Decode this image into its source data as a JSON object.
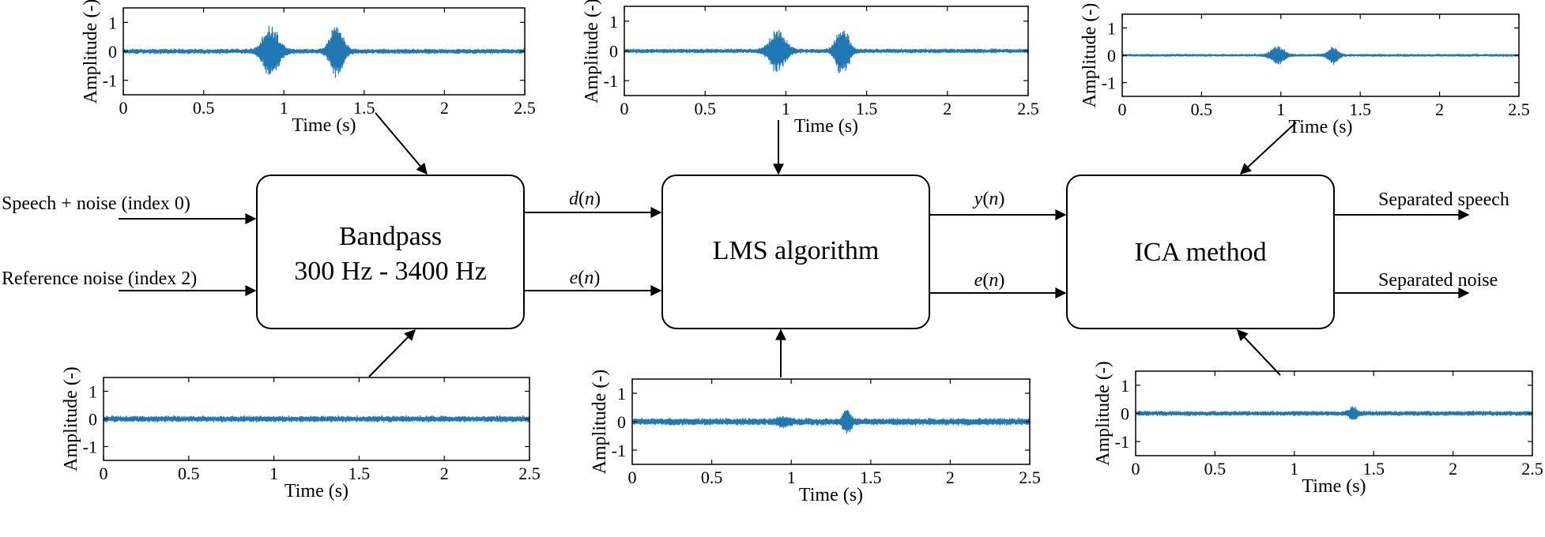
{
  "blocks": {
    "bandpass": {
      "line1": "Bandpass",
      "line2": "300 Hz - 3400 Hz"
    },
    "lms": {
      "label": "LMS algorithm"
    },
    "ica": {
      "label": "ICA method"
    }
  },
  "inputs": {
    "speech_noise": "Speech + noise (index 0)",
    "reference_noise": "Reference noise (index 2)"
  },
  "outputs": {
    "separated_speech": "Separated speech",
    "separated_noise": "Separated noise"
  },
  "signals": {
    "bp_to_lms_top": {
      "var": "d",
      "arg": "n"
    },
    "bp_to_lms_bottom": {
      "var": "e",
      "arg": "n"
    },
    "lms_to_ica_top": {
      "var": "y",
      "arg": "n"
    },
    "lms_to_ica_bottom": {
      "var": "e",
      "arg": "n"
    }
  },
  "axes": {
    "ylabel": "Amplitude (-)",
    "xlabel": "Time (s)",
    "xticks": [
      "0",
      "0.5",
      "1",
      "1.5",
      "2",
      "2.5"
    ],
    "yticks": [
      "1",
      "0",
      "-1"
    ],
    "xlim": [
      0,
      2.5
    ],
    "ylim": [
      -1.5,
      1.5
    ]
  },
  "colors": {
    "waveform": "#1f77b4",
    "frame": "#000000"
  },
  "chart_data": [
    {
      "type": "line",
      "id": "top-left",
      "noise": 0.07,
      "bursts": [
        {
          "t": 0.92,
          "amp": 0.95,
          "w": 0.16
        },
        {
          "t": 1.33,
          "amp": 1.0,
          "w": 0.13
        }
      ]
    },
    {
      "type": "line",
      "id": "top-center",
      "noise": 0.06,
      "bursts": [
        {
          "t": 0.95,
          "amp": 0.75,
          "w": 0.16
        },
        {
          "t": 1.35,
          "amp": 0.95,
          "w": 0.12
        }
      ]
    },
    {
      "type": "line",
      "id": "top-right",
      "noise": 0.04,
      "bursts": [
        {
          "t": 0.98,
          "amp": 0.35,
          "w": 0.13
        },
        {
          "t": 1.33,
          "amp": 0.35,
          "w": 0.1
        }
      ]
    },
    {
      "type": "line",
      "id": "bottom-left",
      "noise": 0.09,
      "bursts": []
    },
    {
      "type": "line",
      "id": "bottom-center",
      "noise": 0.1,
      "bursts": [
        {
          "t": 0.95,
          "amp": 0.12,
          "w": 0.12
        },
        {
          "t": 1.35,
          "amp": 0.4,
          "w": 0.08
        }
      ]
    },
    {
      "type": "line",
      "id": "bottom-right",
      "noise": 0.07,
      "bursts": [
        {
          "t": 1.37,
          "amp": 0.25,
          "w": 0.07
        }
      ]
    }
  ]
}
